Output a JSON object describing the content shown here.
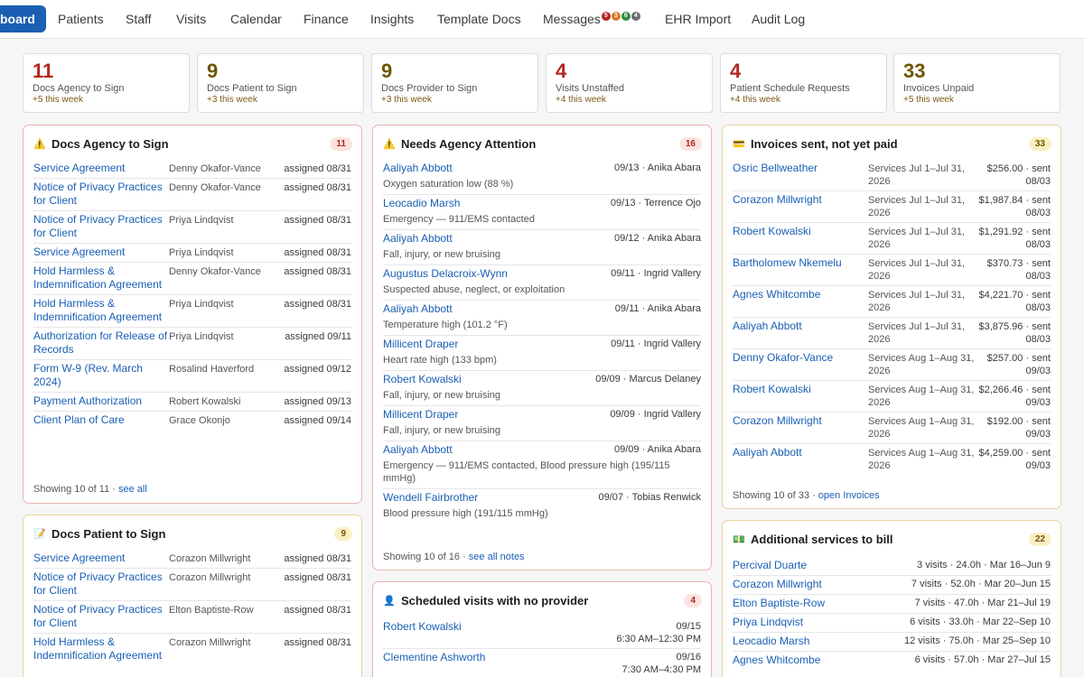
{
  "nav": {
    "items": [
      "board",
      "Patients",
      "Staff",
      "Visits",
      "Calendar",
      "Finance",
      "Insights",
      "Template Docs",
      "Messages",
      "EHR Import",
      "Audit Log"
    ],
    "message_badges": [
      {
        "label": "5",
        "color": "#b3261e"
      },
      {
        "label": "3",
        "color": "#d9782a"
      },
      {
        "label": "6",
        "color": "#2e8b3e"
      },
      {
        "label": "4",
        "color": "#6b6b70"
      }
    ]
  },
  "stats": [
    {
      "value": "11",
      "label": "Docs Agency to Sign",
      "delta": "+5 this week",
      "color": "#b3261e"
    },
    {
      "value": "9",
      "label": "Docs Patient to Sign",
      "delta": "+3 this week",
      "color": "#6e5500"
    },
    {
      "value": "9",
      "label": "Docs Provider to Sign",
      "delta": "+3 this week",
      "color": "#6e5500"
    },
    {
      "value": "4",
      "label": "Visits Unstaffed",
      "delta": "+4 this week",
      "color": "#b3261e"
    },
    {
      "value": "4",
      "label": "Patient Schedule Requests",
      "delta": "+4 this week",
      "color": "#b3261e"
    },
    {
      "value": "33",
      "label": "Invoices Unpaid",
      "delta": "+5 this week",
      "color": "#6e5500"
    }
  ],
  "agency_docs": {
    "title": "Docs Agency to Sign",
    "icon": "warning-icon",
    "count": "11",
    "rows": [
      {
        "title": "Service Agreement",
        "person": "Denny Okafor-Vance",
        "date": "assigned 08/31"
      },
      {
        "title": "Notice of Privacy Practices for Client",
        "person": "Denny Okafor-Vance",
        "date": "assigned 08/31"
      },
      {
        "title": "Notice of Privacy Practices for Client",
        "person": "Priya Lindqvist",
        "date": "assigned 08/31"
      },
      {
        "title": "Service Agreement",
        "person": "Priya Lindqvist",
        "date": "assigned 08/31"
      },
      {
        "title": "Hold Harmless & Indemnification Agreement",
        "person": "Denny Okafor-Vance",
        "date": "assigned 08/31"
      },
      {
        "title": "Hold Harmless & Indemnification Agreement",
        "person": "Priya Lindqvist",
        "date": "assigned 08/31"
      },
      {
        "title": "Authorization for Release of Records",
        "person": "Priya Lindqvist",
        "date": "assigned 09/11"
      },
      {
        "title": "Form W-9 (Rev. March 2024)",
        "person": "Rosalind Haverford",
        "date": "assigned 09/12"
      },
      {
        "title": "Payment Authorization",
        "person": "Robert Kowalski",
        "date": "assigned 09/13"
      },
      {
        "title": "Client Plan of Care",
        "person": "Grace Okonjo",
        "date": "assigned 09/14"
      }
    ],
    "footer": "Showing 10 of 11 ·",
    "footer_link": "see all"
  },
  "patient_docs": {
    "title": "Docs Patient to Sign",
    "icon": "memo-icon",
    "count": "9",
    "rows": [
      {
        "title": "Service Agreement",
        "person": "Corazon Millwright",
        "date": "assigned 08/31"
      },
      {
        "title": "Notice of Privacy Practices for Client",
        "person": "Corazon Millwright",
        "date": "assigned 08/31"
      },
      {
        "title": "Notice of Privacy Practices for Client",
        "person": "Elton Baptiste-Row",
        "date": "assigned 08/31"
      },
      {
        "title": "Hold Harmless & Indemnification Agreement",
        "person": "Corazon Millwright",
        "date": "assigned 08/31"
      }
    ]
  },
  "attention": {
    "title": "Needs Agency Attention",
    "icon": "warning-icon",
    "count": "16",
    "rows": [
      {
        "name": "Aaliyah Abbott",
        "meta": "09/13 · Anika Abara",
        "desc": "Oxygen saturation low (88 %)"
      },
      {
        "name": "Leocadio Marsh",
        "meta": "09/13 · Terrence Ojo",
        "desc": "Emergency — 911/EMS contacted"
      },
      {
        "name": "Aaliyah Abbott",
        "meta": "09/12 · Anika Abara",
        "desc": "Fall, injury, or new bruising"
      },
      {
        "name": "Augustus Delacroix-Wynn",
        "meta": "09/11 · Ingrid Vallery",
        "desc": "Suspected abuse, neglect, or exploitation"
      },
      {
        "name": "Aaliyah Abbott",
        "meta": "09/11 · Anika Abara",
        "desc": "Temperature high (101.2 °F)"
      },
      {
        "name": "Millicent Draper",
        "meta": "09/11 · Ingrid Vallery",
        "desc": "Heart rate high (133 bpm)"
      },
      {
        "name": "Robert Kowalski",
        "meta": "09/09 · Marcus Delaney",
        "desc": "Fall, injury, or new bruising"
      },
      {
        "name": "Millicent Draper",
        "meta": "09/09 · Ingrid Vallery",
        "desc": "Fall, injury, or new bruising"
      },
      {
        "name": "Aaliyah Abbott",
        "meta": "09/09 · Anika Abara",
        "desc": "Emergency — 911/EMS contacted, Blood pressure high (195/115 mmHg)"
      },
      {
        "name": "Wendell Fairbrother",
        "meta": "09/07 · Tobias Renwick",
        "desc": "Blood pressure high (191/115 mmHg)"
      }
    ],
    "footer": "Showing 10 of 16 ·",
    "footer_link": "see all notes"
  },
  "no_provider": {
    "title": "Scheduled visits with no provider",
    "icon": "person-icon",
    "count": "4",
    "rows": [
      {
        "name": "Robert Kowalski",
        "date": "09/15",
        "time": "6:30 AM–12:30 PM"
      },
      {
        "name": "Clementine Ashworth",
        "date": "09/16",
        "time": "7:30 AM–4:30 PM"
      }
    ]
  },
  "invoices": {
    "title": "Invoices sent, not yet paid",
    "icon": "card-icon",
    "count": "33",
    "rows": [
      {
        "name": "Osric Bellweather",
        "svc": "Services Jul 1–Jul 31, 2026",
        "amt": "$256.00 · sent",
        "sent": "08/03"
      },
      {
        "name": "Corazon Millwright",
        "svc": "Services Jul 1–Jul 31, 2026",
        "amt": "$1,987.84 · sent",
        "sent": "08/03"
      },
      {
        "name": "Robert Kowalski",
        "svc": "Services Jul 1–Jul 31, 2026",
        "amt": "$1,291.92 · sent",
        "sent": "08/03"
      },
      {
        "name": "Bartholomew Nkemelu",
        "svc": "Services Jul 1–Jul 31, 2026",
        "amt": "$370.73 · sent",
        "sent": "08/03"
      },
      {
        "name": "Agnes Whitcombe",
        "svc": "Services Jul 1–Jul 31, 2026",
        "amt": "$4,221.70 · sent",
        "sent": "08/03"
      },
      {
        "name": "Aaliyah Abbott",
        "svc": "Services Jul 1–Jul 31, 2026",
        "amt": "$3,875.96 · sent",
        "sent": "08/03"
      },
      {
        "name": "Denny Okafor-Vance",
        "svc": "Services Aug 1–Aug 31, 2026",
        "amt": "$257.00 · sent",
        "sent": "09/03"
      },
      {
        "name": "Robert Kowalski",
        "svc": "Services Aug 1–Aug 31, 2026",
        "amt": "$2,266.46 · sent",
        "sent": "09/03"
      },
      {
        "name": "Corazon Millwright",
        "svc": "Services Aug 1–Aug 31, 2026",
        "amt": "$192.00 · sent",
        "sent": "09/03"
      },
      {
        "name": "Aaliyah Abbott",
        "svc": "Services Aug 1–Aug 31, 2026",
        "amt": "$4,259.00 · sent",
        "sent": "09/03"
      }
    ],
    "footer": "Showing 10 of 33 ·",
    "footer_link": "open Invoices"
  },
  "additional": {
    "title": "Additional services to bill",
    "icon": "money-icon",
    "count": "22",
    "rows": [
      {
        "name": "Percival Duarte",
        "meta": "3 visits · 24.0h · Mar 16–Jun 9"
      },
      {
        "name": "Corazon Millwright",
        "meta": "7 visits · 52.0h · Mar 20–Jun 15"
      },
      {
        "name": "Elton Baptiste-Row",
        "meta": "7 visits · 47.0h · Mar 21–Jul 19"
      },
      {
        "name": "Priya Lindqvist",
        "meta": "6 visits · 33.0h · Mar 22–Sep 10"
      },
      {
        "name": "Leocadio Marsh",
        "meta": "12 visits · 75.0h · Mar 25–Sep 10"
      },
      {
        "name": "Agnes Whitcombe",
        "meta": "6 visits · 57.0h · Mar 27–Jul 15"
      }
    ]
  }
}
